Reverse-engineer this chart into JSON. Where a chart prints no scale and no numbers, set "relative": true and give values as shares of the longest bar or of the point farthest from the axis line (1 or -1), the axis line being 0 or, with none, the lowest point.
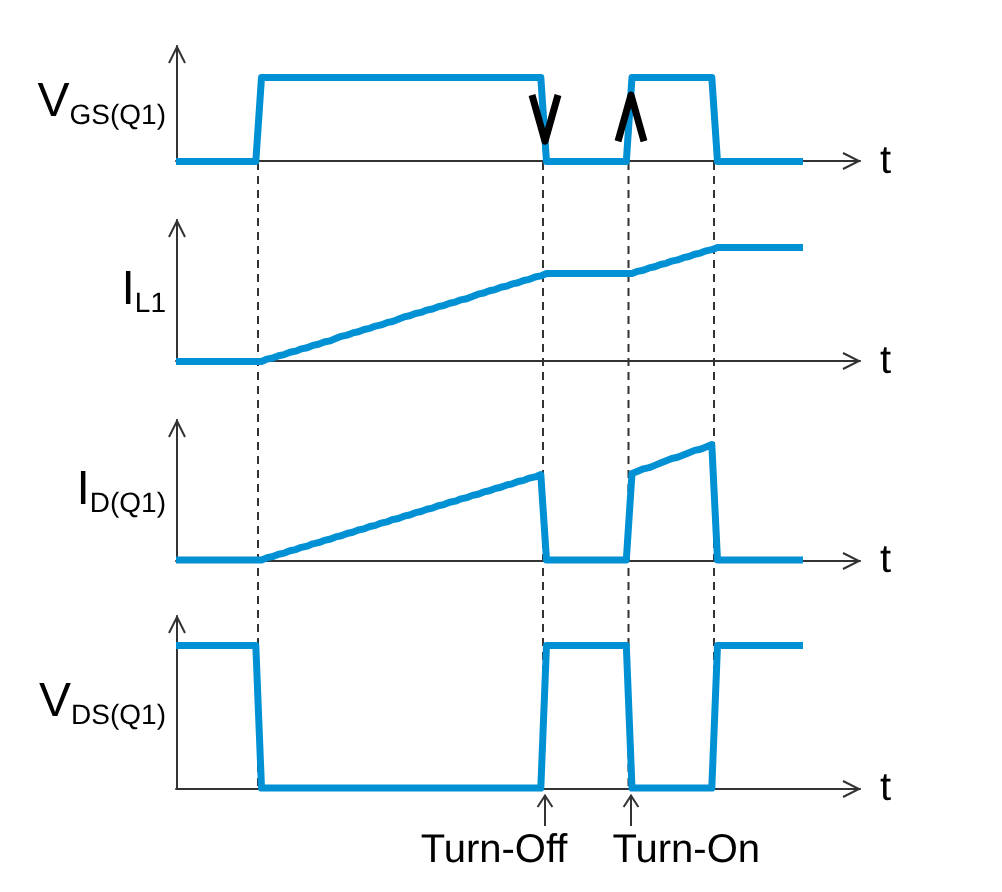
{
  "chart_data": [
    {
      "type": "line",
      "ylabel": "V$_{GS(Q1)}$",
      "xlabel": "t",
      "categories": [
        null,
        null,
        null,
        null,
        null,
        null,
        null,
        null,
        null,
        null,
        null,
        null,
        null,
        null,
        null,
        null,
        null,
        null,
        null,
        null,
        null,
        null,
        null,
        null,
        null,
        null,
        null,
        null,
        null,
        null,
        null,
        null,
        null,
        null,
        null,
        null,
        null,
        null,
        null,
        null,
        null,
        null,
        null,
        null,
        null,
        null,
        null,
        null,
        null,
        null,
        null,
        null,
        null,
        null,
        null,
        null,
        null,
        null,
        null,
        null,
        null,
        null,
        null,
        null,
        null,
        null,
        null,
        null,
        null,
        null,
        null,
        null,
        null,
        null,
        null,
        null,
        null,
        null,
        null,
        null,
        null,
        null,
        null,
        null,
        null,
        null,
        null,
        null,
        null,
        null,
        null,
        null,
        null,
        null,
        null,
        null,
        null,
        null,
        null,
        null,
        null,
        null,
        null,
        null,
        null,
        null,
        null,
        null,
        null,
        null,
        null,
        null,
        null,
        null,
        null,
        null,
        null,
        null,
        null,
        null,
        null
      ],
      "values": [
        0,
        0,
        0,
        0,
        0,
        0,
        0,
        0,
        0,
        0,
        0,
        0,
        0,
        0,
        0,
        1,
        1,
        1,
        1,
        1,
        1,
        1,
        1,
        1,
        1,
        1,
        1,
        1,
        1,
        1,
        1,
        1,
        1,
        1,
        1,
        1,
        1,
        1,
        1,
        1,
        1,
        1,
        1,
        1,
        1,
        1,
        1,
        1,
        1,
        1,
        1,
        1,
        1,
        1,
        1,
        1,
        1,
        1,
        1,
        1,
        1,
        1,
        1,
        1,
        1,
        0,
        0,
        0,
        0,
        0,
        0,
        0,
        0,
        0,
        0,
        0,
        0,
        0,
        0,
        0,
        1,
        1,
        1,
        1,
        1,
        1,
        1,
        1,
        1,
        1,
        1,
        1,
        1,
        1,
        1,
        0,
        0,
        0,
        0,
        0,
        0,
        0,
        0,
        0,
        0,
        0,
        0,
        0,
        0,
        0,
        0,
        null,
        null,
        null,
        null,
        null,
        null,
        null,
        null,
        null,
        null
      ],
      "color": "#0090d4",
      "relative": true,
      "marker": "none"
    },
    {
      "type": "line",
      "ylabel": "I$_{L1}$",
      "xlabel": "t",
      "categories": [
        null,
        null,
        null,
        null,
        null,
        null,
        null,
        null,
        null,
        null,
        null,
        null,
        null,
        null,
        null,
        null,
        null,
        null,
        null,
        null,
        null,
        null,
        null,
        null,
        null,
        null,
        null,
        null,
        null,
        null,
        null,
        null,
        null,
        null,
        null,
        null,
        null,
        null,
        null,
        null,
        null,
        null,
        null,
        null,
        null,
        null,
        null,
        null,
        null,
        null,
        null,
        null,
        null,
        null,
        null,
        null,
        null,
        null,
        null,
        null,
        null,
        null,
        null,
        null,
        null,
        null,
        null,
        null,
        null,
        null,
        null,
        null,
        null,
        null,
        null,
        null,
        null,
        null,
        null,
        null,
        null,
        null,
        null,
        null,
        null,
        null,
        null,
        null,
        null,
        null,
        null,
        null,
        null,
        null,
        null,
        null,
        null,
        null,
        null,
        null,
        null,
        null,
        null,
        null,
        null,
        null,
        null,
        null,
        null,
        null,
        null,
        null,
        null,
        null,
        null,
        null,
        null,
        null,
        null,
        null,
        null
      ],
      "values": [
        0,
        0,
        0,
        0,
        0,
        0,
        0,
        0,
        0,
        0,
        0,
        0,
        0,
        0,
        0,
        0,
        0.02,
        0.03,
        0.05,
        0.06,
        0.08,
        0.09,
        0.11,
        0.12,
        0.14,
        0.15,
        0.17,
        0.18,
        0.2,
        0.22,
        0.23,
        0.25,
        0.26,
        0.28,
        0.29,
        0.31,
        0.32,
        0.34,
        0.35,
        0.37,
        0.39,
        0.4,
        0.42,
        0.43,
        0.45,
        0.46,
        0.48,
        0.49,
        0.51,
        0.52,
        0.54,
        0.55,
        0.57,
        0.59,
        0.6,
        0.62,
        0.63,
        0.65,
        0.66,
        0.68,
        0.69,
        0.71,
        0.72,
        0.74,
        0.75,
        0.77,
        0.77,
        0.77,
        0.77,
        0.77,
        0.77,
        0.77,
        0.77,
        0.77,
        0.77,
        0.77,
        0.77,
        0.77,
        0.77,
        0.77,
        0.77,
        0.79,
        0.8,
        0.82,
        0.83,
        0.85,
        0.86,
        0.88,
        0.89,
        0.91,
        0.92,
        0.94,
        0.95,
        0.97,
        0.98,
        1,
        1,
        1,
        1,
        1,
        1,
        1,
        1,
        1,
        1,
        1,
        1,
        1,
        1,
        1,
        1,
        null,
        null,
        null,
        null,
        null,
        null,
        null,
        null,
        null,
        null
      ],
      "color": "#0090d4",
      "relative": true,
      "marker": "none"
    },
    {
      "type": "line",
      "ylabel": "I$_{D(Q1)}$",
      "xlabel": "t",
      "categories": [
        null,
        null,
        null,
        null,
        null,
        null,
        null,
        null,
        null,
        null,
        null,
        null,
        null,
        null,
        null,
        null,
        null,
        null,
        null,
        null,
        null,
        null,
        null,
        null,
        null,
        null,
        null,
        null,
        null,
        null,
        null,
        null,
        null,
        null,
        null,
        null,
        null,
        null,
        null,
        null,
        null,
        null,
        null,
        null,
        null,
        null,
        null,
        null,
        null,
        null,
        null,
        null,
        null,
        null,
        null,
        null,
        null,
        null,
        null,
        null,
        null,
        null,
        null,
        null,
        null,
        null,
        null,
        null,
        null,
        null,
        null,
        null,
        null,
        null,
        null,
        null,
        null,
        null,
        null,
        null,
        null,
        null,
        null,
        null,
        null,
        null,
        null,
        null,
        null,
        null,
        null,
        null,
        null,
        null,
        null,
        null,
        null,
        null,
        null,
        null,
        null,
        null,
        null,
        null,
        null,
        null,
        null,
        null,
        null,
        null,
        null,
        null,
        null,
        null,
        null,
        null,
        null,
        null,
        null,
        null,
        null
      ],
      "values": [
        0,
        0,
        0,
        0,
        0,
        0,
        0,
        0,
        0,
        0,
        0,
        0,
        0,
        0,
        0,
        0,
        0.02,
        0.03,
        0.05,
        0.06,
        0.08,
        0.09,
        0.11,
        0.12,
        0.14,
        0.15,
        0.17,
        0.18,
        0.2,
        0.21,
        0.23,
        0.24,
        0.26,
        0.27,
        0.29,
        0.3,
        0.32,
        0.33,
        0.35,
        0.36,
        0.38,
        0.39,
        0.41,
        0.42,
        0.44,
        0.45,
        0.47,
        0.48,
        0.5,
        0.51,
        0.53,
        0.54,
        0.56,
        0.57,
        0.59,
        0.6,
        0.62,
        0.63,
        0.65,
        0.66,
        0.68,
        0.69,
        0.71,
        0.72,
        0.74,
        0,
        0,
        0,
        0,
        0,
        0,
        0,
        0,
        0,
        0,
        0,
        0,
        0,
        0,
        0,
        0.75,
        0.77,
        0.79,
        0.8,
        0.82,
        0.84,
        0.86,
        0.88,
        0.89,
        0.91,
        0.93,
        0.95,
        0.96,
        0.98,
        1,
        0,
        0,
        0,
        0,
        0,
        0,
        0,
        0,
        0,
        0,
        0,
        0,
        0,
        0,
        0,
        0,
        null,
        null,
        null,
        null,
        null,
        null,
        null,
        null,
        null,
        null
      ],
      "color": "#0090d4",
      "relative": true,
      "marker": "none"
    },
    {
      "type": "line",
      "ylabel": "V$_{DS(Q1)}$",
      "xlabel": "t",
      "categories": [
        null,
        null,
        null,
        null,
        null,
        null,
        null,
        null,
        null,
        null,
        null,
        null,
        null,
        null,
        null,
        null,
        null,
        null,
        null,
        null,
        null,
        null,
        null,
        null,
        null,
        null,
        null,
        null,
        null,
        null,
        null,
        null,
        null,
        null,
        null,
        null,
        null,
        null,
        null,
        null,
        null,
        null,
        null,
        null,
        null,
        null,
        null,
        null,
        null,
        null,
        null,
        null,
        null,
        null,
        null,
        null,
        null,
        null,
        null,
        null,
        null,
        null,
        null,
        null,
        null,
        null,
        null,
        null,
        null,
        null,
        null,
        null,
        null,
        null,
        null,
        null,
        null,
        null,
        null,
        null,
        null,
        null,
        null,
        null,
        null,
        null,
        null,
        null,
        null,
        null,
        null,
        null,
        null,
        null,
        null,
        null,
        null,
        null,
        null,
        null,
        null,
        null,
        null,
        null,
        null,
        null,
        null,
        null,
        null,
        null,
        null,
        null,
        null,
        null,
        null,
        null,
        null,
        null,
        null,
        null,
        null
      ],
      "values": [
        1,
        1,
        1,
        1,
        1,
        1,
        1,
        1,
        1,
        1,
        1,
        1,
        1,
        1,
        1,
        0,
        0,
        0,
        0,
        0,
        0,
        0,
        0,
        0,
        0,
        0,
        0,
        0,
        0,
        0,
        0,
        0,
        0,
        0,
        0,
        0,
        0,
        0,
        0,
        0,
        0,
        0,
        0,
        0,
        0,
        0,
        0,
        0,
        0,
        0,
        0,
        0,
        0,
        0,
        0,
        0,
        0,
        0,
        0,
        0,
        0,
        0,
        0,
        0,
        0,
        1,
        1,
        1,
        1,
        1,
        1,
        1,
        1,
        1,
        1,
        1,
        1,
        1,
        1,
        1,
        0,
        0,
        0,
        0,
        0,
        0,
        0,
        0,
        0,
        0,
        0,
        0,
        0,
        0,
        0,
        1,
        1,
        1,
        1,
        1,
        1,
        1,
        1,
        1,
        1,
        1,
        1,
        1,
        1,
        1,
        1,
        null,
        null,
        null,
        null,
        null,
        null,
        null,
        null,
        null,
        null
      ],
      "color": "#0090d4",
      "relative": true,
      "marker": "none",
      "annotations": [
        {
          "text": "Turn-Off",
          "y": 0
        },
        {
          "text": "Turn-On",
          "y": 0
        }
      ]
    }
  ]
}
